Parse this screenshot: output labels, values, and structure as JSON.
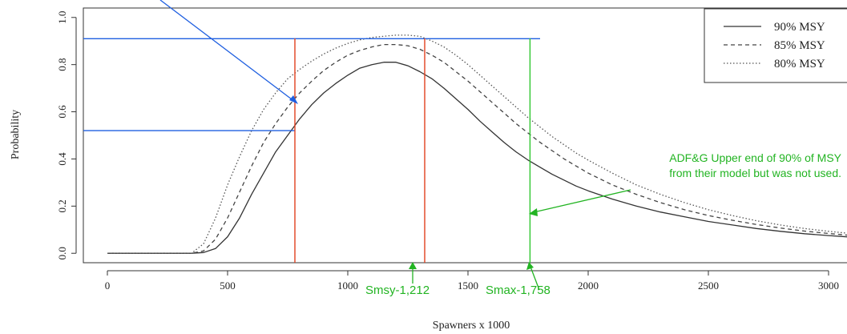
{
  "chart_data": {
    "type": "line",
    "xlabel": "Spawners x 1000",
    "ylabel": "Probability",
    "xlim": [
      -100,
      3100
    ],
    "ylim": [
      -0.04,
      1.04
    ],
    "x_ticks": [
      0,
      500,
      1000,
      1500,
      2000,
      2500,
      3000
    ],
    "x_tick_labels": [
      "0",
      "500",
      "1000",
      "1500",
      "2000",
      "2500",
      "3000"
    ],
    "y_ticks": [
      0.0,
      0.2,
      0.4,
      0.6,
      0.8,
      1.0
    ],
    "y_tick_labels": [
      "0.0",
      "0.2",
      "0.4",
      "0.6",
      "0.8",
      "1.0"
    ],
    "grid": false,
    "legend": {
      "placement": "top-right",
      "entries": [
        "90% MSY",
        "85% MSY",
        "80% MSY"
      ]
    },
    "series": [
      {
        "name": "90% MSY",
        "style": "solid",
        "color": "#333333",
        "x": [
          0,
          350,
          400,
          450,
          500,
          550,
          600,
          650,
          700,
          750,
          800,
          850,
          900,
          950,
          1000,
          1050,
          1100,
          1150,
          1200,
          1250,
          1300,
          1350,
          1400,
          1450,
          1500,
          1550,
          1600,
          1650,
          1700,
          1750,
          1800,
          1850,
          1900,
          1950,
          2000,
          2100,
          2200,
          2300,
          2400,
          2500,
          2600,
          2700,
          2800,
          2900,
          3000,
          3100
        ],
        "y": [
          0.0,
          0.0,
          0.003,
          0.02,
          0.07,
          0.15,
          0.25,
          0.34,
          0.43,
          0.5,
          0.57,
          0.63,
          0.68,
          0.72,
          0.755,
          0.785,
          0.8,
          0.81,
          0.81,
          0.795,
          0.77,
          0.74,
          0.7,
          0.655,
          0.61,
          0.56,
          0.515,
          0.47,
          0.43,
          0.395,
          0.365,
          0.335,
          0.31,
          0.285,
          0.265,
          0.23,
          0.2,
          0.175,
          0.155,
          0.135,
          0.12,
          0.105,
          0.093,
          0.083,
          0.075,
          0.068
        ]
      },
      {
        "name": "85% MSY",
        "style": "dashed",
        "color": "#444444",
        "x": [
          0,
          350,
          400,
          450,
          500,
          550,
          600,
          650,
          700,
          750,
          800,
          850,
          900,
          950,
          1000,
          1050,
          1100,
          1150,
          1200,
          1250,
          1300,
          1350,
          1400,
          1450,
          1500,
          1550,
          1600,
          1650,
          1700,
          1750,
          1800,
          1850,
          1900,
          1950,
          2000,
          2100,
          2200,
          2300,
          2400,
          2500,
          2600,
          2700,
          2800,
          2900,
          3000,
          3100
        ],
        "y": [
          0.0,
          0.0,
          0.01,
          0.06,
          0.15,
          0.26,
          0.37,
          0.47,
          0.55,
          0.62,
          0.68,
          0.73,
          0.775,
          0.81,
          0.84,
          0.86,
          0.875,
          0.885,
          0.885,
          0.88,
          0.865,
          0.84,
          0.81,
          0.77,
          0.73,
          0.685,
          0.64,
          0.595,
          0.55,
          0.51,
          0.47,
          0.435,
          0.4,
          0.37,
          0.34,
          0.29,
          0.25,
          0.215,
          0.185,
          0.16,
          0.14,
          0.122,
          0.107,
          0.094,
          0.084,
          0.075
        ]
      },
      {
        "name": "80% MSY",
        "style": "dotted",
        "color": "#555555",
        "x": [
          0,
          350,
          400,
          450,
          500,
          550,
          600,
          650,
          700,
          750,
          800,
          850,
          900,
          950,
          1000,
          1050,
          1100,
          1150,
          1200,
          1250,
          1300,
          1350,
          1400,
          1450,
          1500,
          1550,
          1600,
          1650,
          1700,
          1750,
          1800,
          1850,
          1900,
          1950,
          2000,
          2100,
          2200,
          2300,
          2400,
          2500,
          2600,
          2700,
          2800,
          2900,
          3000,
          3100
        ],
        "y": [
          0.0,
          0.0,
          0.04,
          0.15,
          0.29,
          0.41,
          0.52,
          0.61,
          0.68,
          0.74,
          0.78,
          0.815,
          0.845,
          0.87,
          0.89,
          0.905,
          0.915,
          0.92,
          0.925,
          0.925,
          0.92,
          0.9,
          0.875,
          0.84,
          0.8,
          0.755,
          0.71,
          0.665,
          0.62,
          0.575,
          0.535,
          0.495,
          0.46,
          0.425,
          0.395,
          0.34,
          0.29,
          0.25,
          0.215,
          0.185,
          0.16,
          0.138,
          0.12,
          0.105,
          0.093,
          0.083
        ]
      }
    ],
    "reference_lines": [
      {
        "kind": "horizontal",
        "color": "#1f5fe0",
        "y": 0.91,
        "x_from": -100,
        "x_to": 1800
      },
      {
        "kind": "horizontal",
        "color": "#1f5fe0",
        "y": 0.52,
        "x_from": -100,
        "x_to": 780
      },
      {
        "kind": "vertical",
        "color": "#e0401e",
        "x": 780
      },
      {
        "kind": "vertical",
        "color": "#e0401e",
        "x": 1320
      },
      {
        "kind": "vertical",
        "color": "#2ec62e",
        "x": 1758
      }
    ],
    "annotations": [
      {
        "text": "Smsy-1,212",
        "color": "#22b422",
        "x": 1212
      },
      {
        "text": "Smax-1,758",
        "color": "#22b422",
        "x": 1758
      },
      {
        "text": "ADF&G Upper end of 90% of MSY",
        "color": "#22b422"
      },
      {
        "text": "from their model but was not used.",
        "color": "#22b422"
      }
    ]
  }
}
